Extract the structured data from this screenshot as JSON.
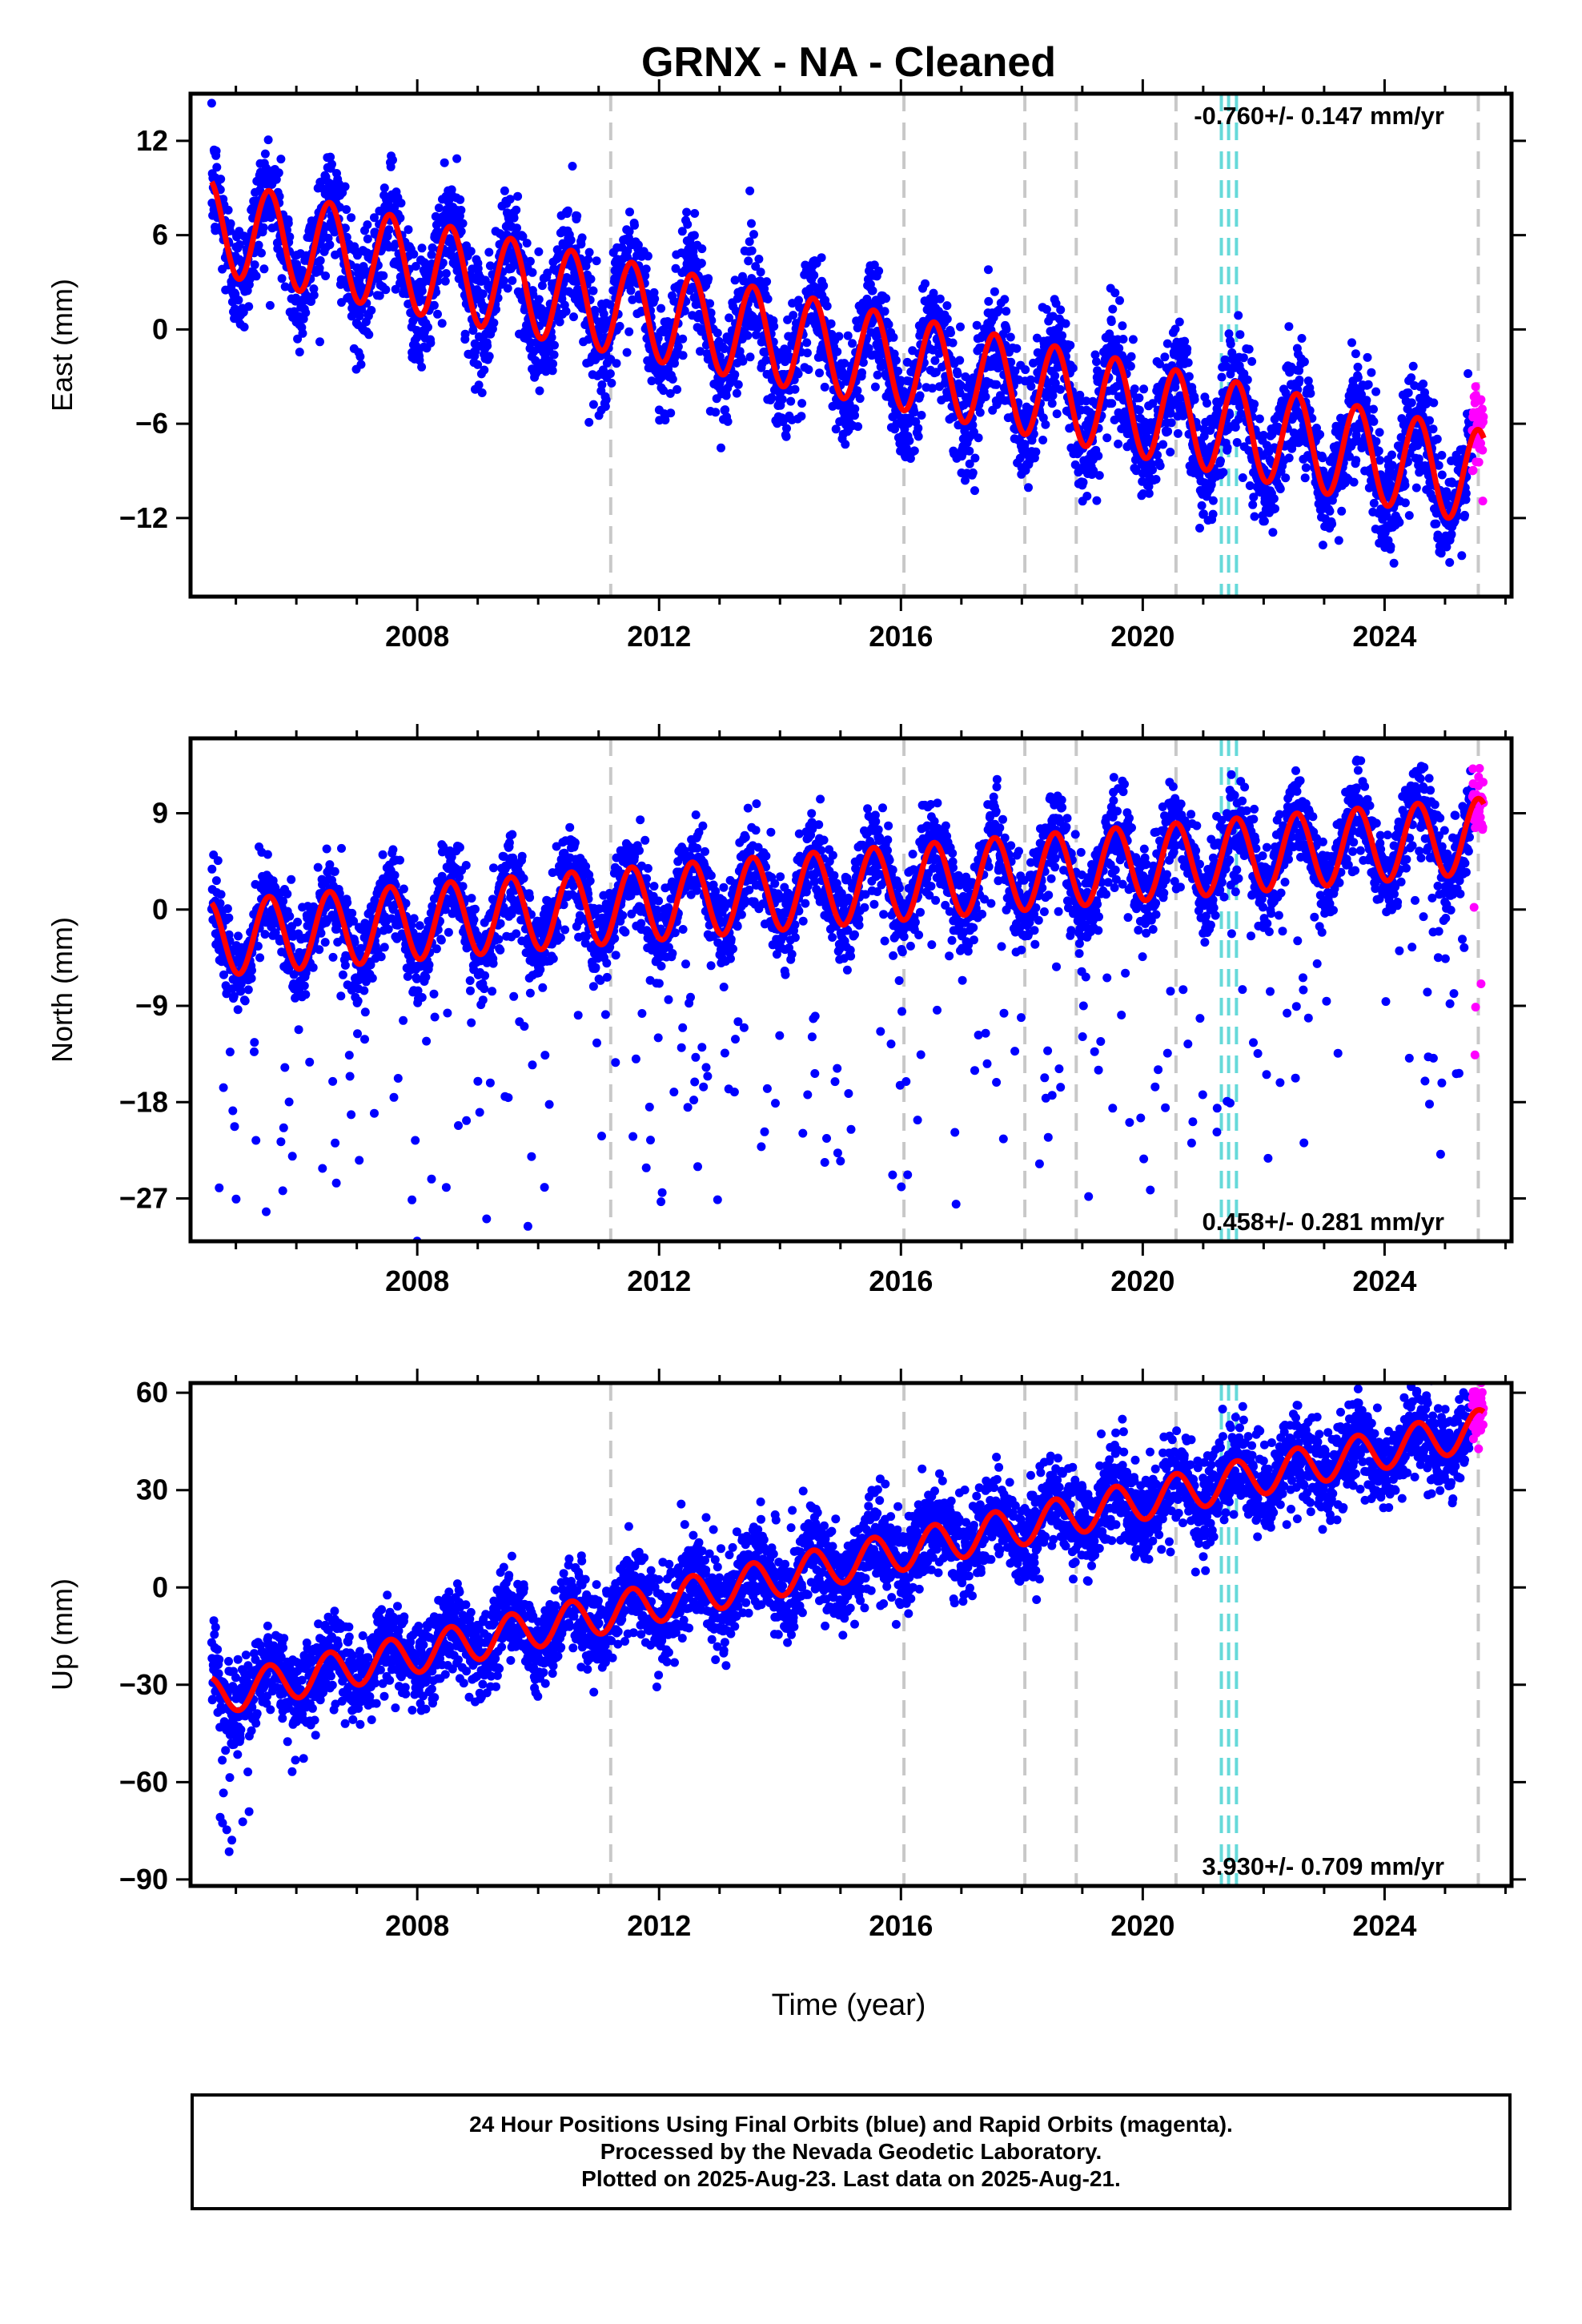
{
  "figure": {
    "title": "GRNX  - NA - Cleaned",
    "xlabel": "Time (year)"
  },
  "colors": {
    "final_orbits": "#0000ff",
    "rapid_orbits": "#ff00ff",
    "model_fit": "#ff0000",
    "offset_lines": "#c8c8c8",
    "equipment_lines": "#66d9d9"
  },
  "caption": {
    "line1": "24 Hour Positions Using Final Orbits (blue) and Rapid Orbits (magenta).",
    "line2": "Processed by the Nevada Geodetic Laboratory.",
    "line3": "Plotted on 2025-Aug-23. Last data on 2025-Aug-21."
  },
  "chart_data": [
    {
      "type": "scatter",
      "component": "East",
      "ylabel": "East (mm)",
      "xlim": [
        2004.25,
        2026.1
      ],
      "ylim": [
        -17,
        15
      ],
      "xticks": [
        2008,
        2012,
        2016,
        2020,
        2024
      ],
      "yticks": [
        12,
        6,
        0,
        -6,
        -12
      ],
      "rate_label": "-0.760+/- 0.147 mm/yr",
      "rate_position": "top-right",
      "model": {
        "rate": -0.76,
        "intercept_2004": 7.0,
        "annual_amp": 3.0,
        "annual_phase_year": 0.55,
        "noise": 1.8
      },
      "series": [
        {
          "name": "Final Orbits",
          "color": "#0000ff",
          "x_range": [
            2004.6,
            2025.45
          ]
        },
        {
          "name": "Rapid Orbits",
          "color": "#ff00ff",
          "x_range": [
            2025.45,
            2025.64
          ]
        },
        {
          "name": "Model",
          "color": "#ff0000"
        }
      ]
    },
    {
      "type": "scatter",
      "component": "North",
      "ylabel": "North (mm)",
      "xlim": [
        2004.25,
        2026.1
      ],
      "ylim": [
        -31,
        16
      ],
      "xticks": [
        2008,
        2012,
        2016,
        2020,
        2024
      ],
      "yticks": [
        9,
        0,
        -9,
        -18,
        -27
      ],
      "rate_label": "0.458+/- 0.281 mm/yr",
      "rate_position": "bottom-right",
      "model": {
        "rate": 0.458,
        "intercept_2004": -3.0,
        "annual_amp": 3.5,
        "annual_phase_year": 0.55,
        "noise": 2.0
      },
      "series": [
        {
          "name": "Final Orbits",
          "color": "#0000ff",
          "x_range": [
            2004.6,
            2025.45
          ]
        },
        {
          "name": "Rapid Orbits",
          "color": "#ff00ff",
          "x_range": [
            2025.45,
            2025.64
          ]
        },
        {
          "name": "Model",
          "color": "#ff0000"
        }
      ]
    },
    {
      "type": "scatter",
      "component": "Up",
      "ylabel": "Up (mm)",
      "xlim": [
        2004.25,
        2026.1
      ],
      "ylim": [
        -92,
        63
      ],
      "xticks": [
        2008,
        2012,
        2016,
        2020,
        2024
      ],
      "yticks": [
        60,
        30,
        0,
        -30,
        -60,
        -90
      ],
      "rate_label": "3.930+/- 0.709 mm/yr",
      "rate_position": "bottom-right",
      "model": {
        "rate": 3.93,
        "intercept_2004": -36.0,
        "annual_amp": 6.0,
        "annual_phase_year": 0.55,
        "noise": 7.0
      },
      "series": [
        {
          "name": "Final Orbits",
          "color": "#0000ff",
          "x_range": [
            2004.6,
            2025.45
          ]
        },
        {
          "name": "Rapid Orbits",
          "color": "#ff00ff",
          "x_range": [
            2025.45,
            2025.64
          ]
        },
        {
          "name": "Model",
          "color": "#ff0000"
        }
      ]
    }
  ],
  "offset_epochs": [
    2011.2,
    2016.05,
    2018.05,
    2018.9,
    2020.55,
    2025.55
  ],
  "equipment_epochs": [
    2021.3,
    2021.42,
    2021.55
  ]
}
